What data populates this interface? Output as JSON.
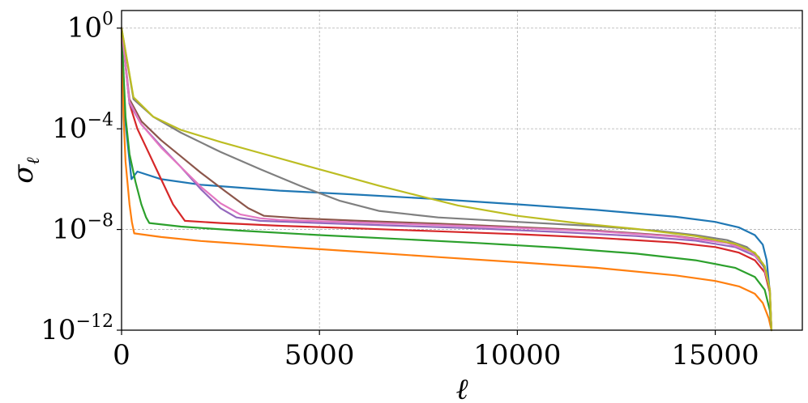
{
  "chart_data": {
    "type": "line",
    "title": "",
    "xlabel": "ℓ",
    "ylabel": "σ",
    "ylabel_sub": "ℓ",
    "yscale": "log",
    "xlim": [
      0,
      17200
    ],
    "ylim": [
      1e-12,
      5
    ],
    "grid": true,
    "x_ticks": [
      {
        "value": 0,
        "label": "0"
      },
      {
        "value": 5000,
        "label": "5000"
      },
      {
        "value": 10000,
        "label": "10000"
      },
      {
        "value": 15000,
        "label": "15000"
      }
    ],
    "y_ticks": [
      {
        "value": 1e-12,
        "base": "10",
        "exp": "−12"
      },
      {
        "value": 1e-08,
        "base": "10",
        "exp": "−8"
      },
      {
        "value": 0.0001,
        "base": "10",
        "exp": "−4"
      },
      {
        "value": 1,
        "base": "10",
        "exp": "0"
      }
    ],
    "series": [
      {
        "color": "#1f77b4",
        "x": [
          0,
          50,
          150,
          250,
          400,
          1000,
          2000,
          4000,
          6000,
          8000,
          10000,
          12000,
          14000,
          15000,
          15600,
          16000,
          16200,
          16300,
          16380,
          16420
        ],
        "y": [
          1,
          0.001,
          3e-05,
          1e-06,
          2e-06,
          1e-06,
          6e-07,
          3.5e-07,
          2.4e-07,
          1.6e-07,
          1e-07,
          6e-08,
          3.2e-08,
          2e-08,
          1.2e-08,
          6e-09,
          2.5e-09,
          6e-10,
          3e-11,
          1e-12
        ]
      },
      {
        "color": "#ff7f0e",
        "x": [
          0,
          50,
          100,
          200,
          260,
          320,
          1000,
          2000,
          4000,
          6000,
          8000,
          10000,
          12000,
          14000,
          15000,
          15600,
          16000,
          16200,
          16350,
          16420
        ],
        "y": [
          1,
          0.0003,
          5e-06,
          1e-07,
          2e-08,
          7e-09,
          5e-09,
          3.5e-09,
          2.1e-09,
          1.3e-09,
          8e-10,
          5e-10,
          3e-10,
          1.5e-10,
          9e-11,
          5.5e-11,
          2.8e-11,
          1.2e-11,
          3e-12,
          1e-12
        ]
      },
      {
        "color": "#2ca02c",
        "x": [
          0,
          100,
          200,
          350,
          500,
          620,
          700,
          1500,
          3000,
          5000,
          7000,
          9000,
          11000,
          13000,
          14500,
          15500,
          16000,
          16250,
          16380,
          16420
        ],
        "y": [
          1,
          0.0003,
          1e-05,
          8e-07,
          1e-07,
          3e-08,
          1.8e-08,
          1.3e-08,
          9e-09,
          6e-09,
          4.2e-09,
          2.9e-09,
          1.9e-09,
          1.1e-09,
          6e-10,
          3e-10,
          1.3e-10,
          4e-11,
          6e-12,
          1e-12
        ]
      },
      {
        "color": "#d62728",
        "x": [
          0,
          200,
          400,
          700,
          1000,
          1300,
          1600,
          2500,
          4000,
          6000,
          8000,
          10000,
          12000,
          14000,
          15000,
          15600,
          16000,
          16250,
          16380,
          16420
        ],
        "y": [
          1,
          0.001,
          0.0001,
          1e-05,
          1e-06,
          1e-07,
          2.2e-08,
          1.8e-08,
          1.4e-08,
          1.1e-08,
          8.5e-09,
          6.5e-09,
          4.7e-09,
          3e-09,
          2e-09,
          1.2e-09,
          6e-10,
          2e-10,
          3e-11,
          1e-12
        ]
      },
      {
        "color": "#9467bd",
        "x": [
          0,
          200,
          500,
          1000,
          1500,
          2000,
          2500,
          2900,
          3500,
          5000,
          7000,
          9000,
          11000,
          13000,
          14500,
          15500,
          16000,
          16250,
          16380,
          16420
        ],
        "y": [
          1,
          0.001,
          0.00015,
          2e-05,
          3e-06,
          4e-07,
          7e-08,
          3e-08,
          2.2e-08,
          1.8e-08,
          1.4e-08,
          1.1e-08,
          8e-09,
          5.5e-09,
          3.6e-09,
          2e-09,
          9e-10,
          3e-10,
          4e-11,
          1e-12
        ]
      },
      {
        "color": "#8c564b",
        "x": [
          0,
          200,
          500,
          1000,
          1500,
          2000,
          2600,
          3200,
          3600,
          4500,
          6000,
          8000,
          10000,
          12000,
          14000,
          15300,
          15900,
          16200,
          16370,
          16420
        ],
        "y": [
          1,
          0.0015,
          0.0002,
          3.5e-05,
          8e-06,
          1.8e-06,
          3.5e-07,
          7e-08,
          3.5e-08,
          2.8e-08,
          2.2e-08,
          1.7e-08,
          1.25e-08,
          9e-09,
          5.5e-09,
          3e-09,
          1.4e-09,
          4.5e-10,
          5e-11,
          1e-12
        ]
      },
      {
        "color": "#e377c2",
        "x": [
          0,
          200,
          500,
          1000,
          1500,
          2000,
          2500,
          3000,
          3500,
          4000,
          6000,
          8000,
          10000,
          12000,
          14000,
          15300,
          15900,
          16200,
          16370,
          16420
        ],
        "y": [
          1,
          0.0012,
          0.00015,
          1.8e-05,
          3e-06,
          5e-07,
          1.1e-07,
          4e-08,
          2.8e-08,
          2.4e-08,
          1.9e-08,
          1.5e-08,
          1.15e-08,
          8.5e-09,
          5.2e-09,
          2.9e-09,
          1.3e-09,
          4.5e-10,
          5e-11,
          1e-12
        ]
      },
      {
        "color": "#7f7f7f",
        "x": [
          0,
          300,
          800,
          1500,
          2500,
          3500,
          4500,
          5500,
          6500,
          8000,
          10000,
          12000,
          13500,
          14500,
          15300,
          15800,
          16100,
          16300,
          16380,
          16420
        ],
        "y": [
          1,
          0.0015,
          0.0003,
          7e-05,
          1.2e-05,
          2.5e-06,
          5.5e-07,
          1.4e-07,
          5.5e-08,
          3e-08,
          2e-08,
          1.35e-08,
          9e-09,
          6e-09,
          3.8e-09,
          2e-09,
          8e-10,
          2e-10,
          3e-11,
          1e-12
        ]
      },
      {
        "color": "#bcbd22",
        "x": [
          0,
          300,
          800,
          1500,
          2500,
          3500,
          4500,
          5500,
          6500,
          7500,
          8500,
          10000,
          11500,
          13000,
          14500,
          15500,
          16000,
          16250,
          16380,
          16420
        ],
        "y": [
          1,
          0.0018,
          0.0003,
          9e-05,
          3e-05,
          1.1e-05,
          4e-06,
          1.5e-06,
          5.5e-07,
          2.2e-07,
          9e-08,
          3.5e-08,
          1.8e-08,
          1.05e-08,
          5.5e-09,
          2.7e-09,
          1.2e-09,
          3.5e-10,
          4e-11,
          1e-12
        ]
      }
    ]
  }
}
